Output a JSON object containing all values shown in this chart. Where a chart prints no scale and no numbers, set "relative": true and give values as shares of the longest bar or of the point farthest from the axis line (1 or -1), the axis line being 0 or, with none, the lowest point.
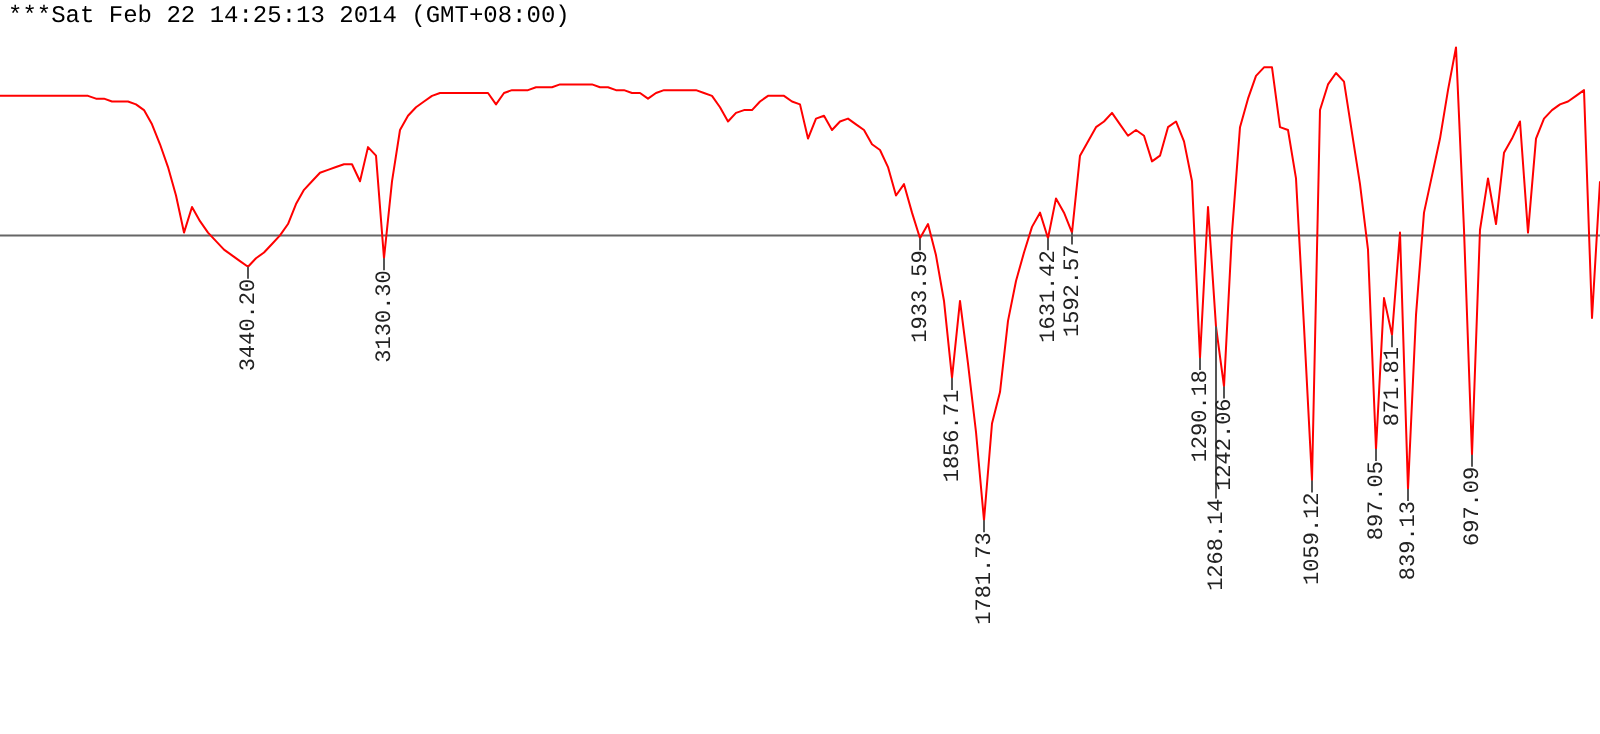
{
  "chart_data": {
    "type": "line",
    "title": "***Sat Feb 22 14:25:13 2014 (GMT+08:00)",
    "relative": true,
    "marker": "none",
    "line_style": "solid",
    "categories": [
      null,
      null,
      null,
      null,
      null,
      null,
      null,
      null,
      null,
      null,
      null,
      null,
      null,
      null,
      null,
      null,
      null,
      null,
      null,
      null,
      null,
      null,
      null,
      null,
      null,
      null,
      null,
      null,
      null,
      null,
      null,
      "3440.20",
      null,
      null,
      null,
      null,
      null,
      null,
      null,
      null,
      null,
      null,
      null,
      null,
      null,
      null,
      null,
      null,
      "3130.30",
      null,
      null,
      null,
      null,
      null,
      null,
      null,
      null,
      null,
      null,
      null,
      null,
      null,
      null,
      null,
      null,
      null,
      null,
      null,
      null,
      null,
      null,
      null,
      null,
      null,
      null,
      null,
      null,
      null,
      null,
      null,
      null,
      null,
      null,
      null,
      null,
      null,
      null,
      null,
      null,
      null,
      null,
      null,
      null,
      null,
      null,
      null,
      null,
      null,
      null,
      null,
      null,
      null,
      null,
      null,
      null,
      null,
      null,
      null,
      null,
      null,
      null,
      null,
      null,
      null,
      null,
      "1933.59",
      null,
      null,
      null,
      "1856.71",
      null,
      null,
      null,
      "1781.73",
      null,
      null,
      null,
      null,
      null,
      null,
      null,
      "1631.42",
      null,
      null,
      "1592.57",
      null,
      null,
      null,
      null,
      null,
      null,
      null,
      null,
      null,
      null,
      null,
      null,
      null,
      null,
      null,
      "1290.18",
      null,
      "1268.14",
      "1242.06",
      null,
      null,
      null,
      null,
      null,
      null,
      null,
      null,
      null,
      null,
      "1059.12",
      null,
      null,
      null,
      null,
      null,
      null,
      null,
      "897.05",
      null,
      "871.81",
      null,
      "839.13",
      null,
      null,
      null,
      null,
      null,
      null,
      null,
      "697.09",
      null,
      null,
      null,
      null,
      null,
      null,
      null,
      null,
      null,
      null,
      null,
      null,
      null,
      null,
      null,
      null
    ],
    "series": [
      {
        "color": "#ff0000",
        "values": [
          0.49,
          0.49,
          0.49,
          0.49,
          0.49,
          0.49,
          0.49,
          0.49,
          0.49,
          0.49,
          0.49,
          0.49,
          0.48,
          0.48,
          0.47,
          0.47,
          0.47,
          0.46,
          0.44,
          0.39,
          0.32,
          0.24,
          0.14,
          0.01,
          0.1,
          0.05,
          0.01,
          -0.02,
          -0.05,
          -0.07,
          -0.09,
          -0.11,
          -0.08,
          -0.06,
          -0.03,
          0,
          0.04,
          0.11,
          0.16,
          0.19,
          0.22,
          0.23,
          0.24,
          0.25,
          0.25,
          0.19,
          0.31,
          0.28,
          -0.08,
          0.19,
          0.37,
          0.42,
          0.45,
          0.47,
          0.49,
          0.5,
          0.5,
          0.5,
          0.5,
          0.5,
          0.5,
          0.5,
          0.46,
          0.5,
          0.51,
          0.51,
          0.51,
          0.52,
          0.52,
          0.52,
          0.53,
          0.53,
          0.53,
          0.53,
          0.53,
          0.52,
          0.52,
          0.51,
          0.51,
          0.5,
          0.5,
          0.48,
          0.5,
          0.51,
          0.51,
          0.51,
          0.51,
          0.51,
          0.5,
          0.49,
          0.45,
          0.4,
          0.43,
          0.44,
          0.44,
          0.47,
          0.49,
          0.49,
          0.49,
          0.47,
          0.46,
          0.34,
          0.41,
          0.42,
          0.37,
          0.4,
          0.41,
          0.39,
          0.37,
          0.32,
          0.3,
          0.24,
          0.14,
          0.18,
          0.08,
          -0.01,
          0.04,
          -0.07,
          -0.23,
          -0.5,
          -0.23,
          -0.45,
          -0.69,
          -1,
          -0.66,
          -0.55,
          -0.3,
          -0.16,
          -0.06,
          0.03,
          0.08,
          -0.01,
          0.13,
          0.08,
          0.01,
          0.28,
          0.33,
          0.38,
          0.4,
          0.43,
          0.39,
          0.35,
          0.37,
          0.35,
          0.26,
          0.28,
          0.38,
          0.4,
          0.33,
          0.19,
          -0.43,
          0.1,
          -0.32,
          -0.53,
          0.01,
          0.38,
          0.48,
          0.56,
          0.59,
          0.59,
          0.38,
          0.37,
          0.2,
          -0.32,
          -0.86,
          0.44,
          0.53,
          0.57,
          0.54,
          0.36,
          0.18,
          -0.05,
          -0.75,
          -0.22,
          -0.35,
          0.01,
          -0.89,
          -0.28,
          0.08,
          0.21,
          0.34,
          0.51,
          0.66,
          0.02,
          -0.77,
          0.02,
          0.2,
          0.04,
          0.29,
          0.34,
          0.4,
          0.01,
          0.34,
          0.41,
          0.44,
          0.46,
          0.47,
          0.49,
          0.51,
          -0.29,
          0.19
        ]
      }
    ]
  }
}
